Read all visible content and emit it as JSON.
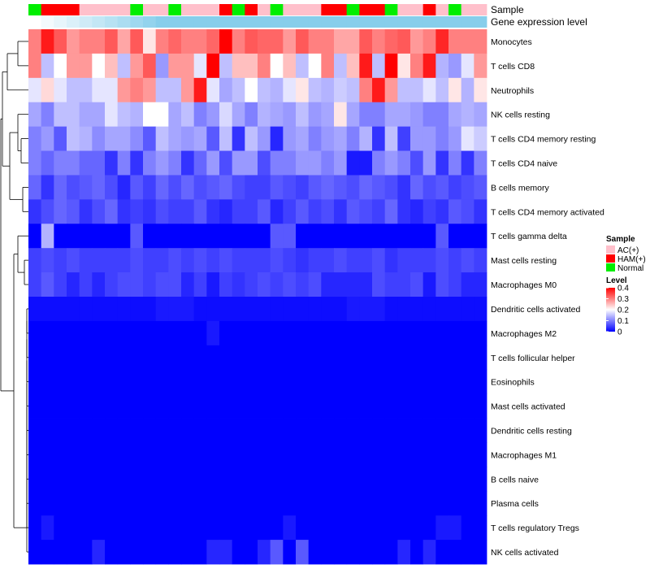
{
  "chart_data": {
    "type": "heatmap",
    "annotation_labels": {
      "sample": "Sample",
      "expression": "Gene expression level"
    },
    "sample_groups": [
      "Normal",
      "HAM(+)",
      "HAM(+)",
      "HAM(+)",
      "AC(+)",
      "AC(+)",
      "AC(+)",
      "AC(+)",
      "Normal",
      "AC(+)",
      "AC(+)",
      "Normal",
      "AC(+)",
      "AC(+)",
      "AC(+)",
      "HAM(+)",
      "Normal",
      "HAM(+)",
      "AC(+)",
      "Normal",
      "AC(+)",
      "AC(+)",
      "AC(+)",
      "HAM(+)",
      "HAM(+)",
      "Normal",
      "HAM(+)",
      "HAM(+)",
      "Normal",
      "AC(+)",
      "AC(+)",
      "HAM(+)",
      "AC(+)",
      "Normal",
      "AC(+)",
      "AC(+)"
    ],
    "rows": [
      "Monocytes",
      "T cells CD8",
      "Neutrophils",
      "NK cells resting",
      "T cells CD4 memory resting",
      "T cells CD4 naive",
      "B cells memory",
      "T cells CD4 memory activated",
      "T cells gamma delta",
      "Mast cells resting",
      "Macrophages M0",
      "Dendritic cells activated",
      "Macrophages M2",
      "T cells follicular helper",
      "Eosinophils",
      "Mast cells activated",
      "Dendritic cells resting",
      "Macrophages M1",
      "B cells naive",
      "Plasma cells",
      "T cells regulatory  Tregs",
      "NK cells activated"
    ],
    "values": [
      [
        0.3,
        0.38,
        0.33,
        0.28,
        0.3,
        0.3,
        0.33,
        0.27,
        0.33,
        0.22,
        0.3,
        0.32,
        0.3,
        0.3,
        0.32,
        0.4,
        0.3,
        0.33,
        0.32,
        0.32,
        0.28,
        0.33,
        0.3,
        0.3,
        0.27,
        0.27,
        0.33,
        0.3,
        0.32,
        0.33,
        0.28,
        0.3,
        0.37,
        0.3,
        0.3,
        0.3
      ],
      [
        0.3,
        0.15,
        0.2,
        0.28,
        0.28,
        0.2,
        0.25,
        0.15,
        0.28,
        0.33,
        0.12,
        0.28,
        0.28,
        0.18,
        0.4,
        0.15,
        0.25,
        0.25,
        0.3,
        0.2,
        0.25,
        0.15,
        0.2,
        0.3,
        0.15,
        0.25,
        0.38,
        0.15,
        0.4,
        0.22,
        0.3,
        0.38,
        0.14,
        0.12,
        0.18,
        0.28
      ],
      [
        0.18,
        0.23,
        0.18,
        0.15,
        0.15,
        0.18,
        0.18,
        0.28,
        0.3,
        0.28,
        0.15,
        0.15,
        0.28,
        0.38,
        0.18,
        0.13,
        0.15,
        0.2,
        0.15,
        0.14,
        0.18,
        0.22,
        0.15,
        0.14,
        0.16,
        0.15,
        0.3,
        0.38,
        0.28,
        0.15,
        0.15,
        0.18,
        0.15,
        0.22,
        0.14,
        0.22
      ],
      [
        0.13,
        0.1,
        0.15,
        0.15,
        0.13,
        0.13,
        0.18,
        0.15,
        0.14,
        0.2,
        0.2,
        0.13,
        0.15,
        0.1,
        0.12,
        0.17,
        0.13,
        0.1,
        0.14,
        0.13,
        0.12,
        0.15,
        0.12,
        0.13,
        0.22,
        0.13,
        0.1,
        0.1,
        0.13,
        0.13,
        0.12,
        0.1,
        0.1,
        0.13,
        0.14,
        0.13
      ],
      [
        0.1,
        0.12,
        0.07,
        0.15,
        0.14,
        0.11,
        0.13,
        0.13,
        0.11,
        0.07,
        0.15,
        0.13,
        0.12,
        0.13,
        0.07,
        0.15,
        0.04,
        0.15,
        0.12,
        0.03,
        0.12,
        0.13,
        0.1,
        0.12,
        0.13,
        0.1,
        0.14,
        0.04,
        0.15,
        0.05,
        0.12,
        0.12,
        0.1,
        0.12,
        0.18,
        0.16
      ],
      [
        0.1,
        0.08,
        0.1,
        0.1,
        0.08,
        0.08,
        0.04,
        0.1,
        0.04,
        0.1,
        0.12,
        0.1,
        0.04,
        0.08,
        0.12,
        0.06,
        0.12,
        0.12,
        0.06,
        0.1,
        0.1,
        0.12,
        0.12,
        0.1,
        0.12,
        0.02,
        0.02,
        0.1,
        0.12,
        0.1,
        0.06,
        0.12,
        0.04,
        0.1,
        0.04,
        0.1
      ],
      [
        0.08,
        0.04,
        0.08,
        0.06,
        0.07,
        0.08,
        0.06,
        0.03,
        0.07,
        0.05,
        0.08,
        0.06,
        0.08,
        0.06,
        0.07,
        0.08,
        0.06,
        0.05,
        0.05,
        0.07,
        0.06,
        0.05,
        0.07,
        0.08,
        0.07,
        0.06,
        0.08,
        0.07,
        0.06,
        0.04,
        0.08,
        0.06,
        0.07,
        0.05,
        0.06,
        0.07
      ],
      [
        0.04,
        0.06,
        0.08,
        0.07,
        0.04,
        0.06,
        0.08,
        0.04,
        0.05,
        0.04,
        0.06,
        0.05,
        0.05,
        0.07,
        0.04,
        0.03,
        0.05,
        0.05,
        0.07,
        0.03,
        0.05,
        0.07,
        0.05,
        0.06,
        0.04,
        0.07,
        0.06,
        0.05,
        0.08,
        0.04,
        0.03,
        0.05,
        0.04,
        0.07,
        0.06,
        0.04
      ],
      [
        0.0,
        0.14,
        0.0,
        0.0,
        0.0,
        0.0,
        0.0,
        0.0,
        0.07,
        0.0,
        0.0,
        0.0,
        0.0,
        0.0,
        0.0,
        0.0,
        0.0,
        0.0,
        0.0,
        0.07,
        0.07,
        0.0,
        0.0,
        0.0,
        0.0,
        0.0,
        0.0,
        0.0,
        0.0,
        0.0,
        0.0,
        0.0,
        0.07,
        0.0,
        0.0,
        0.0
      ],
      [
        0.05,
        0.06,
        0.05,
        0.06,
        0.05,
        0.05,
        0.05,
        0.05,
        0.06,
        0.05,
        0.05,
        0.06,
        0.05,
        0.06,
        0.05,
        0.06,
        0.05,
        0.05,
        0.05,
        0.06,
        0.05,
        0.04,
        0.05,
        0.05,
        0.06,
        0.05,
        0.05,
        0.06,
        0.04,
        0.05,
        0.05,
        0.05,
        0.06,
        0.05,
        0.06,
        0.05
      ],
      [
        0.05,
        0.07,
        0.05,
        0.03,
        0.05,
        0.03,
        0.05,
        0.06,
        0.06,
        0.05,
        0.06,
        0.06,
        0.03,
        0.05,
        0.02,
        0.05,
        0.04,
        0.05,
        0.06,
        0.05,
        0.06,
        0.05,
        0.06,
        0.03,
        0.03,
        0.03,
        0.03,
        0.06,
        0.05,
        0.05,
        0.06,
        0.02,
        0.06,
        0.05,
        0.03,
        0.03
      ],
      [
        0.01,
        0.01,
        0.01,
        0.01,
        0.01,
        0.01,
        0.01,
        0.01,
        0.01,
        0.01,
        0.02,
        0.02,
        0.02,
        0.01,
        0.01,
        0.01,
        0.01,
        0.01,
        0.01,
        0.01,
        0.01,
        0.01,
        0.01,
        0.01,
        0.01,
        0.02,
        0.02,
        0.02,
        0.01,
        0.01,
        0.01,
        0.01,
        0.01,
        0.01,
        0.01,
        0.01
      ],
      [
        0.0,
        0.0,
        0.0,
        0.0,
        0.0,
        0.0,
        0.0,
        0.0,
        0.0,
        0.0,
        0.0,
        0.0,
        0.0,
        0.0,
        0.02,
        0.0,
        0.0,
        0.0,
        0.0,
        0.0,
        0.0,
        0.0,
        0.0,
        0.0,
        0.0,
        0.0,
        0.0,
        0.0,
        0.0,
        0.0,
        0.0,
        0.0,
        0.0,
        0.0,
        0.0,
        0.0
      ],
      [
        0.0,
        0.0,
        0.0,
        0.0,
        0.0,
        0.0,
        0.0,
        0.0,
        0.0,
        0.0,
        0.0,
        0.0,
        0.0,
        0.0,
        0.0,
        0.0,
        0.0,
        0.0,
        0.0,
        0.0,
        0.0,
        0.0,
        0.0,
        0.0,
        0.0,
        0.0,
        0.0,
        0.0,
        0.0,
        0.0,
        0.0,
        0.0,
        0.0,
        0.0,
        0.0,
        0.0
      ],
      [
        0.0,
        0.0,
        0.0,
        0.0,
        0.0,
        0.0,
        0.0,
        0.0,
        0.0,
        0.0,
        0.0,
        0.0,
        0.0,
        0.0,
        0.0,
        0.0,
        0.0,
        0.0,
        0.0,
        0.0,
        0.0,
        0.0,
        0.0,
        0.0,
        0.0,
        0.0,
        0.0,
        0.0,
        0.0,
        0.0,
        0.0,
        0.0,
        0.0,
        0.0,
        0.0,
        0.0
      ],
      [
        0.0,
        0.0,
        0.0,
        0.0,
        0.0,
        0.0,
        0.0,
        0.0,
        0.0,
        0.0,
        0.0,
        0.0,
        0.0,
        0.0,
        0.0,
        0.0,
        0.0,
        0.0,
        0.0,
        0.0,
        0.0,
        0.0,
        0.0,
        0.0,
        0.0,
        0.0,
        0.0,
        0.0,
        0.0,
        0.0,
        0.0,
        0.0,
        0.0,
        0.0,
        0.0,
        0.0
      ],
      [
        0.0,
        0.0,
        0.0,
        0.0,
        0.0,
        0.0,
        0.0,
        0.0,
        0.0,
        0.0,
        0.0,
        0.0,
        0.0,
        0.0,
        0.0,
        0.0,
        0.0,
        0.0,
        0.0,
        0.0,
        0.0,
        0.0,
        0.0,
        0.0,
        0.0,
        0.0,
        0.0,
        0.0,
        0.0,
        0.0,
        0.0,
        0.0,
        0.0,
        0.0,
        0.0,
        0.0
      ],
      [
        0.0,
        0.0,
        0.0,
        0.0,
        0.0,
        0.0,
        0.0,
        0.0,
        0.0,
        0.0,
        0.0,
        0.0,
        0.0,
        0.0,
        0.0,
        0.0,
        0.0,
        0.0,
        0.0,
        0.0,
        0.0,
        0.0,
        0.0,
        0.0,
        0.0,
        0.0,
        0.0,
        0.0,
        0.0,
        0.0,
        0.0,
        0.0,
        0.0,
        0.0,
        0.0,
        0.0
      ],
      [
        0.0,
        0.0,
        0.0,
        0.0,
        0.0,
        0.0,
        0.0,
        0.0,
        0.0,
        0.0,
        0.0,
        0.0,
        0.0,
        0.0,
        0.0,
        0.0,
        0.0,
        0.0,
        0.0,
        0.0,
        0.0,
        0.0,
        0.0,
        0.0,
        0.0,
        0.0,
        0.0,
        0.0,
        0.0,
        0.0,
        0.0,
        0.0,
        0.0,
        0.0,
        0.0,
        0.0
      ],
      [
        0.0,
        0.0,
        0.0,
        0.0,
        0.0,
        0.0,
        0.0,
        0.0,
        0.0,
        0.0,
        0.0,
        0.0,
        0.0,
        0.0,
        0.0,
        0.0,
        0.0,
        0.0,
        0.0,
        0.0,
        0.0,
        0.0,
        0.0,
        0.0,
        0.0,
        0.0,
        0.0,
        0.0,
        0.0,
        0.0,
        0.0,
        0.0,
        0.0,
        0.0,
        0.0,
        0.0
      ],
      [
        0.0,
        0.02,
        0.0,
        0.0,
        0.0,
        0.0,
        0.0,
        0.0,
        0.0,
        0.0,
        0.0,
        0.0,
        0.0,
        0.0,
        0.0,
        0.0,
        0.0,
        0.0,
        0.0,
        0.0,
        0.02,
        0.0,
        0.0,
        0.0,
        0.0,
        0.0,
        0.0,
        0.0,
        0.0,
        0.0,
        0.0,
        0.0,
        0.02,
        0.02,
        0.0,
        0.0
      ],
      [
        0.0,
        0.0,
        0.0,
        0.0,
        0.0,
        0.03,
        0.0,
        0.0,
        0.0,
        0.0,
        0.0,
        0.0,
        0.0,
        0.0,
        0.03,
        0.03,
        0.0,
        0.0,
        0.03,
        0.07,
        0.0,
        0.07,
        0.0,
        0.0,
        0.0,
        0.0,
        0.0,
        0.0,
        0.0,
        0.03,
        0.0,
        0.03,
        0.0,
        0.0,
        0.0,
        0.0
      ]
    ],
    "expression_level": [
      0.0,
      0.1,
      0.2,
      0.3,
      0.4,
      0.5,
      0.6,
      0.7,
      0.8,
      0.9,
      1.0,
      1.0,
      1.0,
      1.0,
      1.0,
      1.0,
      1.0,
      1.0,
      1.0,
      1.0,
      1.0,
      1.0,
      1.0,
      1.0,
      1.0,
      1.0,
      1.0,
      1.0,
      1.0,
      1.0,
      1.0,
      1.0,
      1.0,
      1.0,
      1.0,
      1.0
    ],
    "legend": {
      "sample_title": "Sample",
      "sample_items": [
        {
          "label": "AC(+)",
          "color": "#ffc0cb"
        },
        {
          "label": "HAM(+)",
          "color": "#ff0000"
        },
        {
          "label": "Normal",
          "color": "#00ee00"
        }
      ],
      "level_title": "Level",
      "level_ticks": [
        "0.4",
        "0.3",
        "0.2",
        "0.1",
        "0"
      ],
      "level_range": [
        0,
        0.4
      ]
    },
    "colors": {
      "low": "#0000ff",
      "mid": "#ffffff",
      "high": "#ff0000",
      "expr_low": "#ffffff",
      "expr_high": "#87ceeb",
      "dendrogram": "#000000"
    }
  }
}
